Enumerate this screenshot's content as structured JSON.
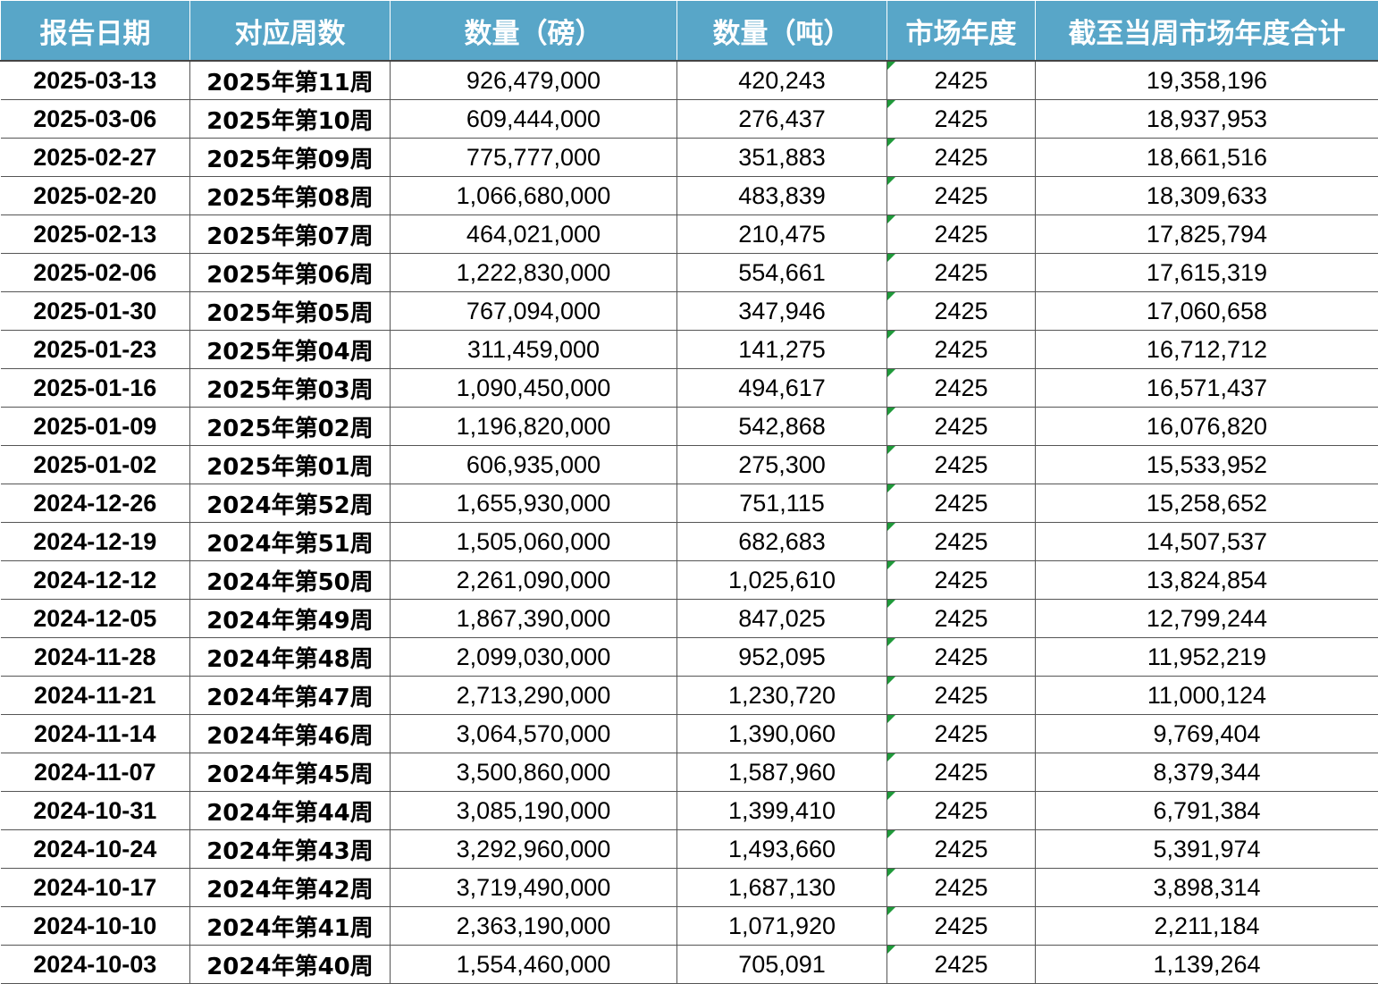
{
  "table": {
    "headers": [
      "报告日期",
      "对应周数",
      "数量（磅）",
      "数量（吨）",
      "市场年度",
      "截至当周市场年度合计"
    ],
    "rows": [
      [
        "2025-03-13",
        "2025年第11周",
        "926,479,000",
        "420,243",
        "2425",
        "19,358,196"
      ],
      [
        "2025-03-06",
        "2025年第10周",
        "609,444,000",
        "276,437",
        "2425",
        "18,937,953"
      ],
      [
        "2025-02-27",
        "2025年第09周",
        "775,777,000",
        "351,883",
        "2425",
        "18,661,516"
      ],
      [
        "2025-02-20",
        "2025年第08周",
        "1,066,680,000",
        "483,839",
        "2425",
        "18,309,633"
      ],
      [
        "2025-02-13",
        "2025年第07周",
        "464,021,000",
        "210,475",
        "2425",
        "17,825,794"
      ],
      [
        "2025-02-06",
        "2025年第06周",
        "1,222,830,000",
        "554,661",
        "2425",
        "17,615,319"
      ],
      [
        "2025-01-30",
        "2025年第05周",
        "767,094,000",
        "347,946",
        "2425",
        "17,060,658"
      ],
      [
        "2025-01-23",
        "2025年第04周",
        "311,459,000",
        "141,275",
        "2425",
        "16,712,712"
      ],
      [
        "2025-01-16",
        "2025年第03周",
        "1,090,450,000",
        "494,617",
        "2425",
        "16,571,437"
      ],
      [
        "2025-01-09",
        "2025年第02周",
        "1,196,820,000",
        "542,868",
        "2425",
        "16,076,820"
      ],
      [
        "2025-01-02",
        "2025年第01周",
        "606,935,000",
        "275,300",
        "2425",
        "15,533,952"
      ],
      [
        "2024-12-26",
        "2024年第52周",
        "1,655,930,000",
        "751,115",
        "2425",
        "15,258,652"
      ],
      [
        "2024-12-19",
        "2024年第51周",
        "1,505,060,000",
        "682,683",
        "2425",
        "14,507,537"
      ],
      [
        "2024-12-12",
        "2024年第50周",
        "2,261,090,000",
        "1,025,610",
        "2425",
        "13,824,854"
      ],
      [
        "2024-12-05",
        "2024年第49周",
        "1,867,390,000",
        "847,025",
        "2425",
        "12,799,244"
      ],
      [
        "2024-11-28",
        "2024年第48周",
        "2,099,030,000",
        "952,095",
        "2425",
        "11,952,219"
      ],
      [
        "2024-11-21",
        "2024年第47周",
        "2,713,290,000",
        "1,230,720",
        "2425",
        "11,000,124"
      ],
      [
        "2024-11-14",
        "2024年第46周",
        "3,064,570,000",
        "1,390,060",
        "2425",
        "9,769,404"
      ],
      [
        "2024-11-07",
        "2024年第45周",
        "3,500,860,000",
        "1,587,960",
        "2425",
        "8,379,344"
      ],
      [
        "2024-10-31",
        "2024年第44周",
        "3,085,190,000",
        "1,399,410",
        "2425",
        "6,791,384"
      ],
      [
        "2024-10-24",
        "2024年第43周",
        "3,292,960,000",
        "1,493,660",
        "2425",
        "5,391,974"
      ],
      [
        "2024-10-17",
        "2024年第42周",
        "3,719,490,000",
        "1,687,130",
        "2425",
        "3,898,314"
      ],
      [
        "2024-10-10",
        "2024年第41周",
        "2,363,190,000",
        "1,071,920",
        "2425",
        "2,211,184"
      ],
      [
        "2024-10-03",
        "2024年第40周",
        "1,554,460,000",
        "705,091",
        "2425",
        "1,139,264"
      ]
    ]
  },
  "style": {
    "header_bg": "#58a6c8",
    "header_text": "#ffffff",
    "flag_color": "#1f9a3a",
    "grid_color": "#555555"
  }
}
